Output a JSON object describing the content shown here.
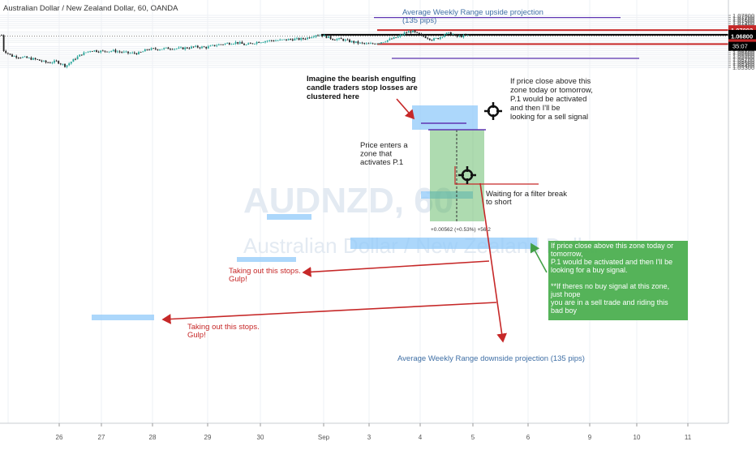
{
  "header": {
    "symbol_title": "Australian Dollar / New Zealand Dollar, 60, OANDA"
  },
  "watermark": "AUDNZD, 60",
  "watermark_sub": "Australian Dollar / New Zealand Dollar",
  "colors": {
    "up": "#26a69a",
    "down": "#222222",
    "red": "#c62828",
    "green_box": "#4caf50",
    "blue_zone": "#90caf9",
    "purple": "#5e35b1",
    "annotation_blue": "#3f6fa5",
    "black_line": "#000000"
  },
  "chart_data": {
    "type": "candlestick",
    "timeframe": "60",
    "x_tick_labels": [
      "26",
      "27",
      "28",
      "29",
      "30",
      "Sep",
      "3",
      "4",
      "5",
      "6",
      "9",
      "10",
      "11"
    ],
    "y_ticks": [
      "1.07800",
      "1.07700",
      "1.07600",
      "1.07500",
      "1.07400",
      "1.07300",
      "1.07200",
      "1.07000",
      "1.06900",
      "1.06700",
      "1.06600",
      "1.06500",
      "1.06300",
      "1.06200",
      "1.06100",
      "1.06000",
      "1.05900",
      "1.05800",
      "1.05700",
      "1.05600",
      "1.05500",
      "1.05400",
      "1.05300"
    ],
    "ylim": [
      1.0524,
      1.0787
    ],
    "price_labels": [
      {
        "value": 1.07092,
        "text": "1.07092",
        "color": "#c62828"
      },
      {
        "value": 1.06865,
        "text": "1.06865",
        "color": "#000000"
      },
      {
        "value": 1.068,
        "text": "1.06800",
        "color": "#000000"
      },
      {
        "value": 1.06417,
        "text": "1.06417",
        "color": "#c62828"
      }
    ],
    "countdown": "35:07",
    "levels": [
      {
        "name": "awr-upside",
        "value": 1.07696,
        "color": "#5e35b1"
      },
      {
        "name": "resistance-red",
        "value": 1.07092,
        "color": "#c62828"
      },
      {
        "name": "black-level",
        "value": 1.06865,
        "color": "#000000"
      },
      {
        "name": "support-red",
        "value": 1.06417,
        "color": "#c62828"
      },
      {
        "name": "awr-downside",
        "value": 1.0573,
        "color": "#5e35b1"
      }
    ],
    "measure_label": "+0.00562 (+0.53%) +56.2"
  },
  "annotations": {
    "awr_up": [
      "Average Weekly Range upside projection",
      "(135 pips)"
    ],
    "awr_down": "Average Weekly Range downside projection (135 pips)",
    "bearish": [
      "Imagine the bearish engulfing",
      "candle traders stop losses are",
      "clustered here"
    ],
    "if_close": [
      "If price close above this",
      "zone today or tomorrow,",
      "P.1 would be activated",
      "and then I'll be",
      "looking for a sell signal"
    ],
    "enters": [
      "Price enters a",
      "zone that",
      "activates P.1"
    ],
    "waiting": [
      "Waiting for a filter break",
      "to short"
    ],
    "stops1": [
      "Taking out this stops.",
      "Gulp!"
    ],
    "stops2": [
      "Taking out this stops.",
      "Gulp!"
    ],
    "green_box": [
      "If price close above this zone today or",
      "tomorrow,",
      "P.1 would be activated and then I'll be",
      "looking for a buy signal.",
      "",
      "**If theres no buy signal at this zone,",
      "just hope",
      "you are in a sell trade and riding this",
      "bad boy"
    ]
  }
}
